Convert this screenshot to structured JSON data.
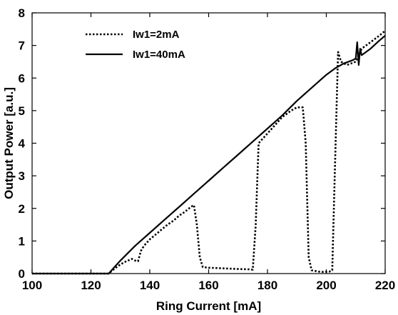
{
  "chart_data": {
    "type": "line",
    "xlabel": "Ring Current [mA]",
    "ylabel": "Output Power [a.u.]",
    "xlim": [
      100,
      220
    ],
    "ylim": [
      0,
      8
    ],
    "xticks": [
      100,
      120,
      140,
      160,
      180,
      200,
      220
    ],
    "yticks": [
      0,
      1,
      2,
      3,
      4,
      5,
      6,
      7,
      8
    ],
    "grid": false,
    "legend_position": "top-left",
    "series": [
      {
        "name": "Iw1=2mA",
        "style": "dotted",
        "color": "#000000",
        "points": [
          [
            100,
            0.0
          ],
          [
            110,
            0.0
          ],
          [
            120,
            0.0
          ],
          [
            125,
            0.0
          ],
          [
            126,
            0.0
          ],
          [
            128,
            0.15
          ],
          [
            130,
            0.28
          ],
          [
            132,
            0.38
          ],
          [
            134,
            0.45
          ],
          [
            135,
            0.4
          ],
          [
            136,
            0.38
          ],
          [
            137,
            0.7
          ],
          [
            138,
            0.85
          ],
          [
            140,
            1.05
          ],
          [
            142,
            1.2
          ],
          [
            144,
            1.35
          ],
          [
            146,
            1.5
          ],
          [
            148,
            1.62
          ],
          [
            150,
            1.78
          ],
          [
            152,
            1.9
          ],
          [
            154,
            2.05
          ],
          [
            155,
            2.1
          ],
          [
            156,
            1.5
          ],
          [
            157,
            0.5
          ],
          [
            158,
            0.2
          ],
          [
            160,
            0.18
          ],
          [
            165,
            0.16
          ],
          [
            170,
            0.14
          ],
          [
            174,
            0.13
          ],
          [
            175,
            0.12
          ],
          [
            176,
            1.5
          ],
          [
            177,
            4.0
          ],
          [
            180,
            4.3
          ],
          [
            185,
            4.8
          ],
          [
            188,
            5.0
          ],
          [
            190,
            5.1
          ],
          [
            192,
            5.1
          ],
          [
            193,
            4.0
          ],
          [
            194,
            0.5
          ],
          [
            195,
            0.1
          ],
          [
            198,
            0.05
          ],
          [
            201,
            0.06
          ],
          [
            202,
            0.1
          ],
          [
            203,
            3.5
          ],
          [
            204,
            6.8
          ],
          [
            205,
            6.5
          ],
          [
            207,
            6.4
          ],
          [
            210,
            6.5
          ],
          [
            211,
            6.7
          ],
          [
            212,
            6.9
          ],
          [
            215,
            7.1
          ],
          [
            218,
            7.3
          ],
          [
            220,
            7.45
          ]
        ]
      },
      {
        "name": "Iw1=40mA",
        "style": "solid",
        "color": "#000000",
        "points": [
          [
            100,
            0.0
          ],
          [
            110,
            0.0
          ],
          [
            120,
            0.0
          ],
          [
            125,
            0.0
          ],
          [
            126,
            0.0
          ],
          [
            130,
            0.4
          ],
          [
            135,
            0.85
          ],
          [
            140,
            1.25
          ],
          [
            145,
            1.65
          ],
          [
            150,
            2.05
          ],
          [
            155,
            2.45
          ],
          [
            160,
            2.85
          ],
          [
            165,
            3.25
          ],
          [
            170,
            3.65
          ],
          [
            175,
            4.05
          ],
          [
            180,
            4.45
          ],
          [
            185,
            4.85
          ],
          [
            190,
            5.3
          ],
          [
            195,
            5.7
          ],
          [
            200,
            6.1
          ],
          [
            203,
            6.3
          ],
          [
            206,
            6.45
          ],
          [
            209,
            6.55
          ],
          [
            210,
            6.6
          ],
          [
            210.5,
            7.1
          ],
          [
            211,
            6.4
          ],
          [
            211.5,
            6.9
          ],
          [
            212,
            6.7
          ],
          [
            215,
            6.9
          ],
          [
            218,
            7.15
          ],
          [
            220,
            7.3
          ]
        ]
      }
    ]
  }
}
